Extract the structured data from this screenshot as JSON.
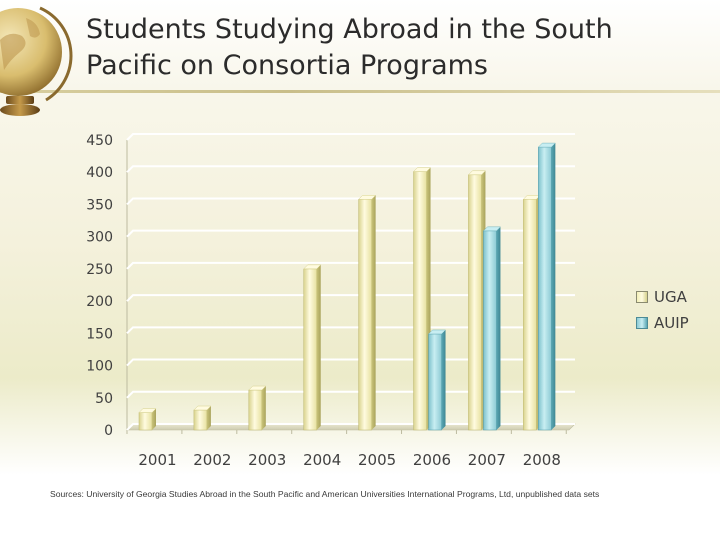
{
  "title": "Students Studying Abroad in the South Pacific on Consortia Programs",
  "source": "Sources: University of Georgia Studies Abroad in the South Pacific and American Universities International Programs, Ltd, unpublished data sets",
  "colors": {
    "uga_light": "#fffbe0",
    "uga_mid": "#efe9a6",
    "uga_dark": "#c9c37a",
    "auip_light": "#c8eef2",
    "auip_mid": "#8ccad4",
    "auip_dark": "#4f99a6",
    "grid": "#ffffff",
    "axis_text": "#404040"
  },
  "chart_data": {
    "type": "bar",
    "title": "Students Studying Abroad in the South Pacific on Consortia Programs",
    "xlabel": "",
    "ylabel": "",
    "categories": [
      "2001",
      "2002",
      "2003",
      "2004",
      "2005",
      "2006",
      "2007",
      "2008"
    ],
    "series": [
      {
        "name": "UGA",
        "values": [
          27,
          31,
          62,
          250,
          358,
          401,
          396,
          358
        ]
      },
      {
        "name": "AUIP",
        "values": [
          null,
          null,
          null,
          null,
          null,
          149,
          309,
          439
        ]
      }
    ],
    "ylim": [
      0,
      450
    ],
    "yticks": [
      0,
      50,
      100,
      150,
      200,
      250,
      300,
      350,
      400,
      450
    ],
    "grid": true,
    "legend": "right",
    "style": "3d-cylinder-like bars"
  }
}
